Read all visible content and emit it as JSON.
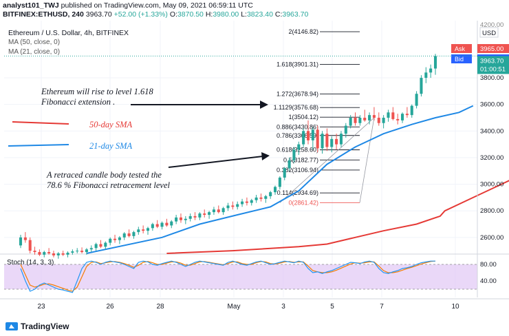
{
  "header": {
    "author": "analyst101_TWJ",
    "published": "published on TradingView.com, May 09, 2021 06:59:11 UTC",
    "symbol": "BITFINEX:ETHUSD, 240",
    "last": "3963.70",
    "change": "+52.00 (+1.33%)",
    "o_label": "O:",
    "o": "3870.50",
    "h_label": "H:",
    "h": "3980.00",
    "l_label": "L:",
    "l": "3823.40",
    "c_label": "C:",
    "c": "3963.70"
  },
  "legend": {
    "title": "Ethereum / U.S. Dollar, 4h, BITFINEX",
    "ma50": "MA (50, close, 0)",
    "ma21": "MA (21, close, 0)",
    "stoch": "Stoch (14, 3, 3)"
  },
  "price_axis": {
    "currency": "USD",
    "ask_label": "Ask",
    "ask": "3965.00",
    "bid_label": "Bid",
    "bid": "3964.60",
    "last": "3963.70",
    "countdown": "01:00:51",
    "top_partial": "4200.00"
  },
  "annotations": {
    "rise_text_1": "Ethereum will rise to level 1.618",
    "rise_text_2": "Fibonacci extension .",
    "sma50_label": "50-day SMA",
    "sma21_label": "21-day SMA",
    "retrace_text_1": "A retraced candle body tested the",
    "retrace_text_2": "78.6 % Fibonacci retracement level"
  },
  "footer": {
    "brand": "TradingView"
  },
  "colors": {
    "up": "#26a69a",
    "down": "#ef5350",
    "ma50": "#e53935",
    "ma21": "#1e88e5",
    "stoch_k": "#2196f3",
    "stoch_d": "#f57c00",
    "stoch_band": "#e1c8f5"
  },
  "chart_data": [
    {
      "type": "candlestick",
      "title": "Ethereum / U.S. Dollar, 4h, BITFINEX",
      "y_ticks": [
        2600,
        2800,
        3000,
        3200,
        3400,
        3600,
        3800
      ],
      "y_tick_labels": [
        "2600.00",
        "2800.00",
        "3000.00",
        "3200.00",
        "3400.00",
        "3600.00",
        "3800.00"
      ],
      "x_tick_labels": [
        "23",
        "26",
        "28",
        "May",
        "3",
        "5",
        "7",
        "10"
      ],
      "ylim": [
        2480,
        4230
      ],
      "fibonacci_levels": [
        {
          "label": "2(4146.82)",
          "value": 4146.82
        },
        {
          "label": "1.618(3901.31)",
          "value": 3901.31
        },
        {
          "label": "1.272(3678.94)",
          "value": 3678.94
        },
        {
          "label": "1.1129(3576.68)",
          "value": 3576.68
        },
        {
          "label": "1(3504.12)",
          "value": 3504.12
        },
        {
          "label": "0.886(3430.86)",
          "value": 3430.86
        },
        {
          "label": "0.786(3366.59)",
          "value": 3366.59
        },
        {
          "label": "0.618(3258.60)",
          "value": 3258.6
        },
        {
          "label": "0.5(3182.77)",
          "value": 3182.77
        },
        {
          "label": "0.382(3106.94)",
          "value": 3106.94
        },
        {
          "label": "0.114(2934.69)",
          "value": 2934.69
        },
        {
          "label": "0(2861.42)",
          "value": 2861.42
        }
      ],
      "candles": [
        [
          2540,
          2620,
          2520,
          2600
        ],
        [
          2600,
          2640,
          2560,
          2580
        ],
        [
          2580,
          2600,
          2480,
          2500
        ],
        [
          2500,
          2530,
          2470,
          2490
        ],
        [
          2490,
          2510,
          2460,
          2470
        ],
        [
          2470,
          2500,
          2450,
          2490
        ],
        [
          2490,
          2520,
          2470,
          2480
        ],
        [
          2480,
          2500,
          2450,
          2465
        ],
        [
          2465,
          2490,
          2440,
          2480
        ],
        [
          2480,
          2500,
          2460,
          2470
        ],
        [
          2470,
          2495,
          2450,
          2485
        ],
        [
          2485,
          2510,
          2470,
          2495
        ],
        [
          2495,
          2520,
          2480,
          2500
        ],
        [
          2500,
          2525,
          2480,
          2490
        ],
        [
          2490,
          2520,
          2470,
          2510
        ],
        [
          2510,
          2540,
          2490,
          2520
        ],
        [
          2520,
          2560,
          2500,
          2550
        ],
        [
          2550,
          2580,
          2520,
          2530
        ],
        [
          2530,
          2570,
          2510,
          2560
        ],
        [
          2560,
          2600,
          2540,
          2590
        ],
        [
          2590,
          2620,
          2560,
          2580
        ],
        [
          2580,
          2610,
          2550,
          2600
        ],
        [
          2600,
          2640,
          2580,
          2630
        ],
        [
          2630,
          2660,
          2600,
          2610
        ],
        [
          2610,
          2650,
          2590,
          2640
        ],
        [
          2640,
          2680,
          2620,
          2660
        ],
        [
          2660,
          2690,
          2630,
          2650
        ],
        [
          2650,
          2680,
          2620,
          2670
        ],
        [
          2670,
          2710,
          2650,
          2700
        ],
        [
          2700,
          2730,
          2670,
          2680
        ],
        [
          2680,
          2720,
          2660,
          2710
        ],
        [
          2710,
          2740,
          2680,
          2690
        ],
        [
          2690,
          2730,
          2670,
          2720
        ],
        [
          2720,
          2770,
          2700,
          2750
        ],
        [
          2750,
          2780,
          2710,
          2730
        ],
        [
          2730,
          2760,
          2700,
          2740
        ],
        [
          2740,
          2780,
          2720,
          2760
        ],
        [
          2760,
          2790,
          2730,
          2750
        ],
        [
          2750,
          2790,
          2730,
          2780
        ],
        [
          2780,
          2810,
          2750,
          2770
        ],
        [
          2770,
          2800,
          2740,
          2790
        ],
        [
          2790,
          2830,
          2770,
          2810
        ],
        [
          2810,
          2840,
          2780,
          2790
        ],
        [
          2790,
          2830,
          2770,
          2820
        ],
        [
          2820,
          2860,
          2800,
          2840
        ],
        [
          2840,
          2870,
          2810,
          2830
        ],
        [
          2830,
          2870,
          2810,
          2850
        ],
        [
          2850,
          2890,
          2830,
          2870
        ],
        [
          2870,
          2900,
          2840,
          2860
        ],
        [
          2860,
          2890,
          2840,
          2880
        ],
        [
          2880,
          2920,
          2860,
          2900
        ],
        [
          2900,
          2930,
          2870,
          2890
        ],
        [
          2890,
          2920,
          2860,
          2910
        ],
        [
          2910,
          2950,
          2890,
          2940
        ],
        [
          2940,
          2990,
          2920,
          2980
        ],
        [
          2980,
          3060,
          2960,
          3050
        ],
        [
          3050,
          3130,
          3030,
          3120
        ],
        [
          3120,
          3200,
          3100,
          3180
        ],
        [
          3180,
          3280,
          3160,
          3260
        ],
        [
          3260,
          3320,
          3220,
          3300
        ],
        [
          3300,
          3420,
          3280,
          3400
        ],
        [
          3400,
          3480,
          3300,
          3330
        ],
        [
          3330,
          3430,
          3260,
          3410
        ],
        [
          3410,
          3440,
          3240,
          3270
        ],
        [
          3270,
          3400,
          3230,
          3380
        ],
        [
          3380,
          3420,
          3250,
          3280
        ],
        [
          3280,
          3360,
          3240,
          3340
        ],
        [
          3340,
          3380,
          3260,
          3300
        ],
        [
          3300,
          3400,
          3280,
          3380
        ],
        [
          3380,
          3460,
          3350,
          3440
        ],
        [
          3440,
          3520,
          3420,
          3500
        ],
        [
          3500,
          3540,
          3440,
          3460
        ],
        [
          3460,
          3520,
          3440,
          3500
        ],
        [
          3500,
          3560,
          3470,
          3480
        ],
        [
          3480,
          3540,
          3450,
          3520
        ],
        [
          3520,
          3580,
          3480,
          3500
        ],
        [
          3500,
          3540,
          3440,
          3460
        ],
        [
          3460,
          3520,
          3420,
          3500
        ],
        [
          3500,
          3560,
          3470,
          3540
        ],
        [
          3540,
          3580,
          3480,
          3490
        ],
        [
          3490,
          3530,
          3450,
          3480
        ],
        [
          3480,
          3540,
          3460,
          3530
        ],
        [
          3530,
          3580,
          3500,
          3520
        ],
        [
          3520,
          3600,
          3500,
          3590
        ],
        [
          3590,
          3700,
          3570,
          3680
        ],
        [
          3680,
          3820,
          3660,
          3800
        ],
        [
          3800,
          3880,
          3760,
          3840
        ],
        [
          3840,
          3900,
          3800,
          3870
        ],
        [
          3870,
          3980,
          3823,
          3964
        ]
      ],
      "ma50_points": [
        [
          31,
          2480
        ],
        [
          45,
          2500
        ],
        [
          59,
          2530
        ],
        [
          65,
          2550
        ],
        [
          71,
          2600
        ],
        [
          77,
          2650
        ],
        [
          84,
          2700
        ],
        [
          89,
          2760
        ],
        [
          90,
          2800
        ],
        [
          96,
          2900
        ],
        [
          102,
          3000
        ],
        [
          108,
          3100
        ],
        [
          114,
          3200
        ],
        [
          120,
          3270
        ],
        [
          126,
          3320
        ]
      ],
      "ma21_points": [
        [
          14,
          2480
        ],
        [
          30,
          2600
        ],
        [
          38,
          2700
        ],
        [
          46,
          2770
        ],
        [
          53,
          2830
        ],
        [
          59,
          2950
        ],
        [
          65,
          3150
        ],
        [
          71,
          3280
        ],
        [
          77,
          3380
        ],
        [
          83,
          3450
        ],
        [
          88,
          3500
        ],
        [
          93,
          3540
        ],
        [
          96,
          3590
        ]
      ],
      "stoch_ticks": [
        40,
        80
      ],
      "stoch_tick_labels": [
        "40.00",
        "80.00"
      ],
      "stoch_k": [
        70,
        40,
        15,
        20,
        30,
        35,
        30,
        25,
        20,
        18,
        15,
        12,
        40,
        70,
        85,
        88,
        85,
        80,
        85,
        88,
        86,
        84,
        80,
        75,
        70,
        85,
        88,
        86,
        80,
        78,
        82,
        85,
        88,
        85,
        80,
        75,
        80,
        85,
        88,
        86,
        84,
        82,
        80,
        78,
        85,
        88,
        84,
        80,
        78,
        82,
        86,
        88,
        84,
        80,
        82,
        85,
        88,
        86,
        84,
        88,
        85,
        70,
        60,
        62,
        58,
        62,
        65,
        70,
        75,
        80,
        85,
        84,
        82,
        86,
        88,
        85,
        70,
        60,
        58,
        62,
        65,
        70,
        72,
        75,
        80,
        84,
        86,
        88,
        88
      ],
      "stoch_d": [
        80,
        55,
        30,
        25,
        28,
        32,
        33,
        30,
        26,
        22,
        18,
        15,
        25,
        50,
        75,
        85,
        86,
        82,
        84,
        86,
        87,
        85,
        82,
        78,
        73,
        78,
        85,
        87,
        84,
        80,
        80,
        83,
        86,
        86,
        83,
        78,
        78,
        82,
        86,
        87,
        85,
        83,
        81,
        79,
        82,
        86,
        86,
        82,
        80,
        80,
        84,
        87,
        86,
        82,
        81,
        83,
        86,
        87,
        85,
        86,
        86,
        76,
        65,
        62,
        60,
        60,
        62,
        66,
        71,
        76,
        81,
        84,
        83,
        84,
        86,
        86,
        76,
        65,
        60,
        60,
        62,
        66,
        70,
        73,
        77,
        81,
        84,
        87,
        88
      ]
    }
  ]
}
